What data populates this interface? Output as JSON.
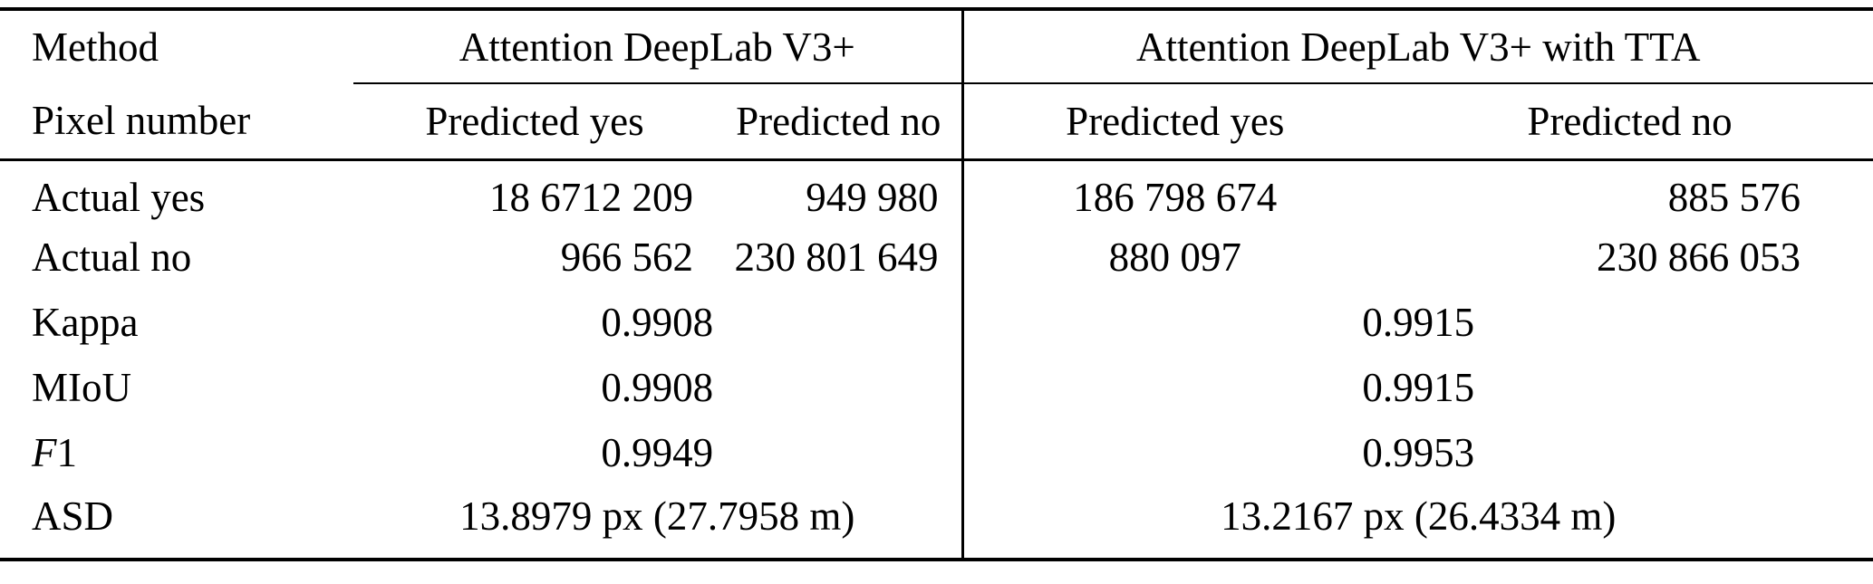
{
  "colors": {
    "background": "#ffffff",
    "text": "#000000",
    "rule": "#000000"
  },
  "table": {
    "header": {
      "method_label": "Method",
      "group1_label": "Attention DeepLab V3+",
      "group2_label": "Attention DeepLab V3+ with TTA",
      "pixel_number_label": "Pixel number",
      "predicted_yes": "Predicted yes",
      "predicted_no": "Predicted no"
    },
    "rows": {
      "actual_yes": {
        "label": "Actual yes",
        "g1_yes": "18 6712 209",
        "g1_no": "949 980",
        "g2_yes": "186 798 674",
        "g2_no": "885 576"
      },
      "actual_no": {
        "label": "Actual no",
        "g1_yes": "966 562",
        "g1_no": "230 801 649",
        "g2_yes": "880 097",
        "g2_no": "230 866 053"
      },
      "kappa": {
        "label": "Kappa",
        "g1": "0.9908",
        "g2": "0.9915"
      },
      "miou": {
        "label": "MIoU",
        "g1": "0.9908",
        "g2": "0.9915"
      },
      "f1": {
        "label_f": "F",
        "label_rest": "1",
        "g1": "0.9949",
        "g2": "0.9953"
      },
      "asd": {
        "label": "ASD",
        "g1": "13.8979 px (27.7958 m)",
        "g2": "13.2167 px (26.4334 m)"
      }
    }
  },
  "chart_data": {
    "type": "table",
    "title": "",
    "column_groups": [
      "Attention DeepLab V3+",
      "Attention DeepLab V3+ with TTA"
    ],
    "columns": [
      "Method / Pixel number",
      "Predicted yes (V3+)",
      "Predicted no (V3+)",
      "Predicted yes (V3+ TTA)",
      "Predicted no (V3+ TTA)"
    ],
    "rows": [
      [
        "Actual yes",
        "18 6712 209",
        "949 980",
        "186 798 674",
        "885 576"
      ],
      [
        "Actual no",
        "966 562",
        "230 801 649",
        "880 097",
        "230 866 053"
      ],
      [
        "Kappa",
        "0.9908",
        "",
        "0.9915",
        ""
      ],
      [
        "MIoU",
        "0.9908",
        "",
        "0.9915",
        ""
      ],
      [
        "F1",
        "0.9949",
        "",
        "0.9953",
        ""
      ],
      [
        "ASD",
        "13.8979 px (27.7958 m)",
        "",
        "13.2167 px (26.4334 m)",
        ""
      ]
    ]
  }
}
